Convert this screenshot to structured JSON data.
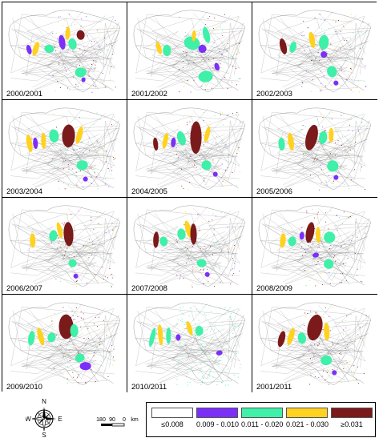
{
  "map": {
    "panels": [
      {
        "label": "2000/2001"
      },
      {
        "label": "2001/2002"
      },
      {
        "label": "2002/2003"
      },
      {
        "label": "2003/2004"
      },
      {
        "label": "2004/2005"
      },
      {
        "label": "2005/2006"
      },
      {
        "label": "2006/2007"
      },
      {
        "label": "2007/2008"
      },
      {
        "label": "2008/2009"
      },
      {
        "label": "2009/2010"
      },
      {
        "label": "2010/2011"
      },
      {
        "label": "2001/2011"
      }
    ]
  },
  "compass": {
    "north": "N",
    "south": "S",
    "east": "E",
    "west": "W"
  },
  "scale_bar": {
    "ticks": [
      "180",
      "90",
      "0"
    ],
    "unit": "km"
  },
  "legend": {
    "items": [
      {
        "label": "≤0.008",
        "color": "#ffffff"
      },
      {
        "label": "0.009 - 0.010",
        "color": "#7b2ff7"
      },
      {
        "label": "0.011 - 0.020",
        "color": "#3ef0a8"
      },
      {
        "label": "0.021 - 0.030",
        "color": "#ffd21f"
      },
      {
        "label": "≥0.031",
        "color": "#7a1a1a"
      }
    ]
  }
}
